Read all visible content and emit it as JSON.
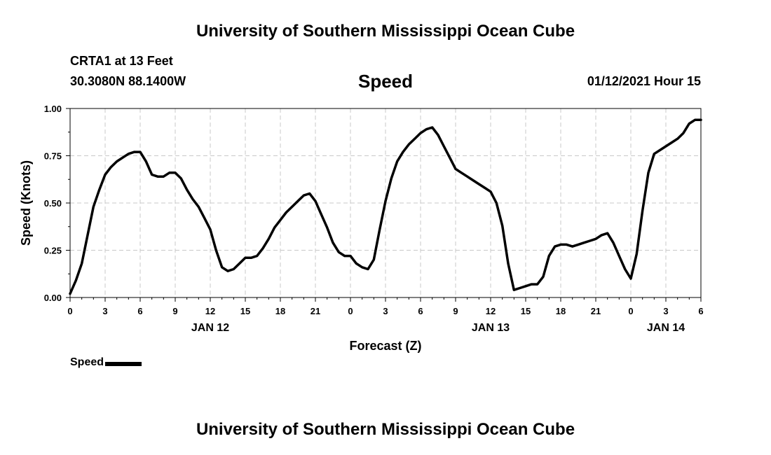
{
  "header": {
    "title": "University of Southern Mississippi Ocean Cube",
    "station": "CRTA1 at 13 Feet",
    "coords": "30.3080N 88.1400W",
    "timestamp": "01/12/2021 Hour 15"
  },
  "footer": {
    "title": "University of Southern Mississippi Ocean Cube"
  },
  "chart_data": {
    "type": "line",
    "title": "Speed",
    "xlabel": "Forecast (Z)",
    "ylabel": "Speed (Knots)",
    "ylim": [
      0,
      1
    ],
    "yticks": [
      "0.00",
      "0.25",
      "0.50",
      "0.75",
      "1.00"
    ],
    "xlim": [
      0,
      54
    ],
    "xticks": [
      "0",
      "3",
      "6",
      "9",
      "12",
      "15",
      "18",
      "21",
      "0",
      "3",
      "6",
      "9",
      "12",
      "15",
      "18",
      "21",
      "0",
      "3",
      "6"
    ],
    "date_labels": [
      {
        "label": "JAN 12",
        "hour": 12
      },
      {
        "label": "JAN 13",
        "hour": 36
      },
      {
        "label": "JAN 14",
        "hour": 51
      }
    ],
    "grid": true,
    "legend": "bottom-left",
    "series": [
      {
        "name": "Speed",
        "color": "#000000",
        "x": [
          0,
          0.5,
          1,
          1.5,
          2,
          2.5,
          3,
          3.5,
          4,
          4.5,
          5,
          5.5,
          6,
          6.5,
          7,
          7.5,
          8,
          8.5,
          9,
          9.5,
          10,
          10.5,
          11,
          11.5,
          12,
          12.5,
          13,
          13.5,
          14,
          14.5,
          15,
          15.5,
          16,
          16.5,
          17,
          17.5,
          18,
          18.5,
          19,
          19.5,
          20,
          20.5,
          21,
          21.5,
          22,
          22.5,
          23,
          23.5,
          24,
          24.5,
          25,
          25.5,
          26,
          26.5,
          27,
          27.5,
          28,
          28.5,
          29,
          29.5,
          30,
          30.5,
          31,
          31.5,
          32,
          32.5,
          33,
          33.5,
          34,
          34.5,
          35,
          35.5,
          36,
          36.5,
          37,
          37.5,
          38,
          38.5,
          39,
          39.5,
          40,
          40.5,
          41,
          41.5,
          42,
          42.5,
          43,
          43.5,
          44,
          44.5,
          45,
          45.5,
          46,
          46.5,
          47,
          47.5,
          48,
          48.5,
          49,
          49.5,
          50,
          50.5,
          51,
          51.5,
          52,
          52.5,
          53,
          53.5,
          54
        ],
        "values": [
          0.02,
          0.09,
          0.18,
          0.33,
          0.48,
          0.57,
          0.65,
          0.69,
          0.72,
          0.74,
          0.76,
          0.77,
          0.77,
          0.72,
          0.65,
          0.64,
          0.64,
          0.66,
          0.66,
          0.63,
          0.57,
          0.52,
          0.48,
          0.42,
          0.36,
          0.25,
          0.16,
          0.14,
          0.15,
          0.18,
          0.21,
          0.21,
          0.22,
          0.26,
          0.31,
          0.37,
          0.41,
          0.45,
          0.48,
          0.51,
          0.54,
          0.55,
          0.51,
          0.44,
          0.37,
          0.29,
          0.24,
          0.22,
          0.22,
          0.18,
          0.16,
          0.15,
          0.2,
          0.36,
          0.51,
          0.63,
          0.72,
          0.77,
          0.81,
          0.84,
          0.87,
          0.89,
          0.9,
          0.86,
          0.8,
          0.74,
          0.68,
          0.66,
          0.64,
          0.62,
          0.6,
          0.58,
          0.56,
          0.5,
          0.38,
          0.18,
          0.04,
          0.05,
          0.06,
          0.07,
          0.07,
          0.11,
          0.22,
          0.27,
          0.28,
          0.28,
          0.27,
          0.28,
          0.29,
          0.3,
          0.31,
          0.33,
          0.34,
          0.29,
          0.22,
          0.15,
          0.1,
          0.23,
          0.46,
          0.66,
          0.76,
          0.78,
          0.8,
          0.82,
          0.84,
          0.87,
          0.92,
          0.94,
          0.94
        ]
      }
    ]
  }
}
